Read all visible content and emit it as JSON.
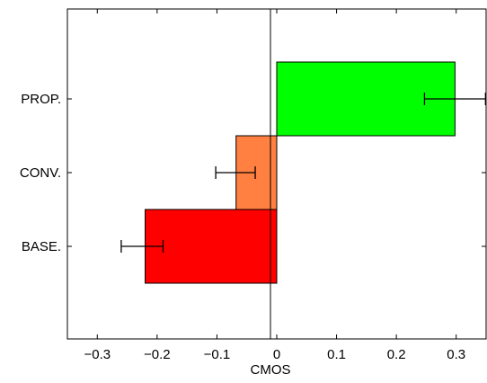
{
  "chart_data": {
    "type": "bar",
    "orientation": "horizontal",
    "title": "",
    "xlabel": "CMOS",
    "ylabel": "",
    "xlim": [
      -0.35,
      0.35
    ],
    "xticks": [
      -0.3,
      -0.2,
      -0.1,
      0,
      0.1,
      0.2,
      0.3
    ],
    "xtick_labels": [
      "−0.3",
      "−0.2",
      "−0.1",
      "0",
      "0.1",
      "0.2",
      "0.3"
    ],
    "categories": [
      "BASE.",
      "CONV.",
      "PROP."
    ],
    "values": [
      -0.22,
      -0.068,
      0.298
    ],
    "error_bars": [
      {
        "center": -0.225,
        "low": -0.26,
        "high": -0.19
      },
      {
        "center": -0.068,
        "low": -0.102,
        "high": -0.036
      },
      {
        "center": 0.298,
        "low": 0.247,
        "high": 0.349
      }
    ],
    "bar_colors": [
      "#ff0000",
      "#ff8040",
      "#00ff00"
    ],
    "grid": false,
    "legend": "none"
  }
}
